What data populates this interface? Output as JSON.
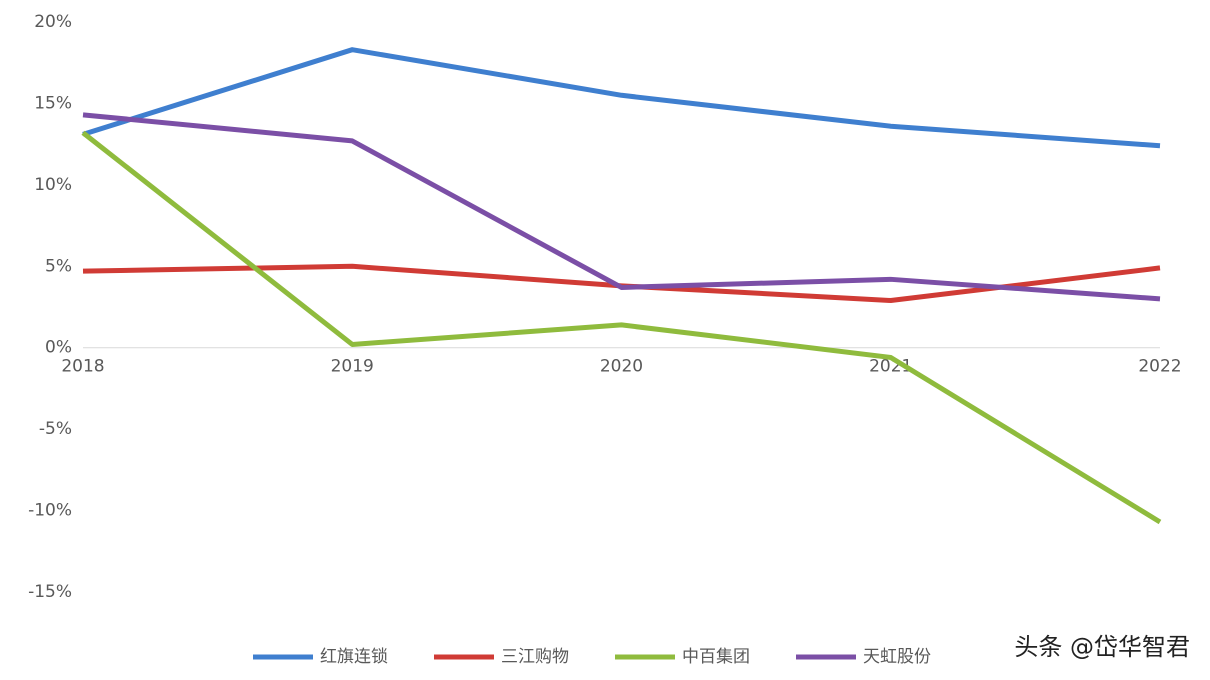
{
  "chart_data": {
    "type": "line",
    "categories": [
      "2018",
      "2019",
      "2020",
      "2021",
      "2022"
    ],
    "series": [
      {
        "name": "红旗连锁",
        "color": "#3f7fcf",
        "values": [
          13.1,
          18.3,
          15.5,
          13.6,
          12.4
        ]
      },
      {
        "name": "三江购物",
        "color": "#d03b35",
        "values": [
          4.7,
          5.0,
          3.8,
          2.9,
          4.9
        ]
      },
      {
        "name": "中百集团",
        "color": "#8fbb3d",
        "values": [
          13.2,
          0.2,
          1.4,
          -0.6,
          -10.7
        ]
      },
      {
        "name": "天虹股份",
        "color": "#7b4fa6",
        "values": [
          14.3,
          12.7,
          3.7,
          4.2,
          3.0
        ]
      }
    ],
    "ylim": [
      -15,
      20
    ],
    "yticks": [
      {
        "value": 20,
        "label": "20%"
      },
      {
        "value": 15,
        "label": "15%"
      },
      {
        "value": 10,
        "label": "10%"
      },
      {
        "value": 5,
        "label": "5%"
      },
      {
        "value": 0,
        "label": "0%"
      },
      {
        "value": -5,
        "label": "-5%"
      },
      {
        "value": -10,
        "label": "-10%"
      },
      {
        "value": -15,
        "label": "-15%"
      }
    ],
    "grid": false,
    "legend": "bottom",
    "watermark": "头条 @岱华智君"
  }
}
